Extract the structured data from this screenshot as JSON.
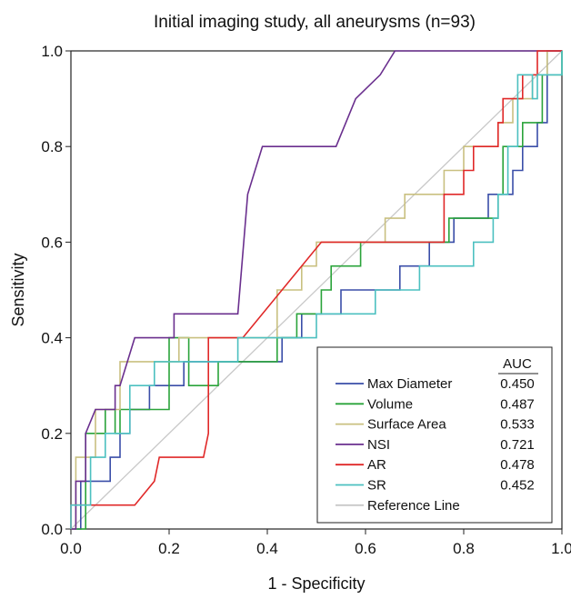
{
  "chart_data": {
    "type": "line",
    "title": "Initial imaging study, all aneurysms (n=93)",
    "xlabel": "1 - Specificity",
    "ylabel": "Sensitivity",
    "xlim": [
      0,
      1
    ],
    "ylim": [
      0,
      1
    ],
    "xticks": [
      "0.0",
      "0.2",
      "0.4",
      "0.6",
      "0.8",
      "1.0"
    ],
    "yticks": [
      "0.0",
      "0.2",
      "0.4",
      "0.6",
      "0.8",
      "1.0"
    ],
    "grid": false,
    "legend_placement": "bottom-right",
    "legend_header": "AUC",
    "series": [
      {
        "name": "Max Diameter",
        "auc": "0.450",
        "color": "#3a4ea8",
        "points": [
          [
            0,
            0
          ],
          [
            0.02,
            0
          ],
          [
            0.02,
            0.1
          ],
          [
            0.08,
            0.1
          ],
          [
            0.08,
            0.15
          ],
          [
            0.1,
            0.15
          ],
          [
            0.1,
            0.2
          ],
          [
            0.12,
            0.2
          ],
          [
            0.12,
            0.25
          ],
          [
            0.16,
            0.25
          ],
          [
            0.16,
            0.3
          ],
          [
            0.23,
            0.3
          ],
          [
            0.23,
            0.35
          ],
          [
            0.43,
            0.35
          ],
          [
            0.43,
            0.4
          ],
          [
            0.47,
            0.4
          ],
          [
            0.47,
            0.45
          ],
          [
            0.55,
            0.45
          ],
          [
            0.55,
            0.5
          ],
          [
            0.67,
            0.5
          ],
          [
            0.67,
            0.55
          ],
          [
            0.73,
            0.55
          ],
          [
            0.73,
            0.6
          ],
          [
            0.78,
            0.6
          ],
          [
            0.78,
            0.65
          ],
          [
            0.85,
            0.65
          ],
          [
            0.85,
            0.7
          ],
          [
            0.9,
            0.7
          ],
          [
            0.9,
            0.75
          ],
          [
            0.92,
            0.75
          ],
          [
            0.92,
            0.8
          ],
          [
            0.95,
            0.8
          ],
          [
            0.95,
            0.85
          ],
          [
            0.97,
            0.85
          ],
          [
            0.97,
            1.0
          ],
          [
            1,
            1
          ]
        ]
      },
      {
        "name": "Volume",
        "auc": "0.487",
        "color": "#2aa33a",
        "points": [
          [
            0,
            0
          ],
          [
            0.03,
            0
          ],
          [
            0.03,
            0.2
          ],
          [
            0.07,
            0.2
          ],
          [
            0.07,
            0.25
          ],
          [
            0.09,
            0.25
          ],
          [
            0.09,
            0.2
          ],
          [
            0.1,
            0.2
          ],
          [
            0.1,
            0.25
          ],
          [
            0.2,
            0.25
          ],
          [
            0.2,
            0.4
          ],
          [
            0.24,
            0.4
          ],
          [
            0.24,
            0.3
          ],
          [
            0.3,
            0.3
          ],
          [
            0.3,
            0.35
          ],
          [
            0.42,
            0.35
          ],
          [
            0.42,
            0.4
          ],
          [
            0.46,
            0.4
          ],
          [
            0.46,
            0.45
          ],
          [
            0.51,
            0.45
          ],
          [
            0.51,
            0.5
          ],
          [
            0.53,
            0.5
          ],
          [
            0.53,
            0.55
          ],
          [
            0.59,
            0.55
          ],
          [
            0.59,
            0.6
          ],
          [
            0.77,
            0.6
          ],
          [
            0.77,
            0.65
          ],
          [
            0.87,
            0.65
          ],
          [
            0.87,
            0.7
          ],
          [
            0.88,
            0.7
          ],
          [
            0.88,
            0.8
          ],
          [
            0.92,
            0.8
          ],
          [
            0.92,
            0.85
          ],
          [
            0.96,
            0.85
          ],
          [
            0.96,
            0.95
          ],
          [
            1,
            0.95
          ],
          [
            1,
            1
          ]
        ]
      },
      {
        "name": "Surface Area",
        "auc": "0.533",
        "color": "#c9c080",
        "points": [
          [
            0,
            0
          ],
          [
            0.01,
            0
          ],
          [
            0.01,
            0.15
          ],
          [
            0.05,
            0.15
          ],
          [
            0.05,
            0.25
          ],
          [
            0.1,
            0.25
          ],
          [
            0.1,
            0.35
          ],
          [
            0.22,
            0.35
          ],
          [
            0.22,
            0.4
          ],
          [
            0.42,
            0.4
          ],
          [
            0.42,
            0.5
          ],
          [
            0.47,
            0.5
          ],
          [
            0.47,
            0.55
          ],
          [
            0.5,
            0.55
          ],
          [
            0.5,
            0.6
          ],
          [
            0.64,
            0.6
          ],
          [
            0.64,
            0.65
          ],
          [
            0.68,
            0.65
          ],
          [
            0.68,
            0.7
          ],
          [
            0.76,
            0.7
          ],
          [
            0.76,
            0.75
          ],
          [
            0.8,
            0.75
          ],
          [
            0.8,
            0.8
          ],
          [
            0.87,
            0.8
          ],
          [
            0.87,
            0.85
          ],
          [
            0.9,
            0.85
          ],
          [
            0.9,
            0.9
          ],
          [
            0.94,
            0.9
          ],
          [
            0.94,
            0.95
          ],
          [
            0.97,
            0.95
          ],
          [
            0.97,
            1.0
          ],
          [
            1,
            1
          ]
        ]
      },
      {
        "name": "NSI",
        "auc": "0.721",
        "color": "#6a2f8e",
        "points": [
          [
            0,
            0
          ],
          [
            0.01,
            0
          ],
          [
            0.01,
            0.1
          ],
          [
            0.03,
            0.1
          ],
          [
            0.03,
            0.2
          ],
          [
            0.05,
            0.25
          ],
          [
            0.09,
            0.25
          ],
          [
            0.09,
            0.3
          ],
          [
            0.1,
            0.3
          ],
          [
            0.13,
            0.4
          ],
          [
            0.21,
            0.4
          ],
          [
            0.21,
            0.45
          ],
          [
            0.34,
            0.45
          ],
          [
            0.36,
            0.7
          ],
          [
            0.36,
            0.7
          ],
          [
            0.39,
            0.8
          ],
          [
            0.54,
            0.8
          ],
          [
            0.58,
            0.9
          ],
          [
            0.63,
            0.95
          ],
          [
            0.66,
            1.0
          ],
          [
            1,
            1
          ]
        ]
      },
      {
        "name": "AR",
        "auc": "0.478",
        "color": "#e02828",
        "points": [
          [
            0,
            0
          ],
          [
            0,
            0.05
          ],
          [
            0.13,
            0.05
          ],
          [
            0.17,
            0.1
          ],
          [
            0.18,
            0.15
          ],
          [
            0.27,
            0.15
          ],
          [
            0.28,
            0.2
          ],
          [
            0.28,
            0.4
          ],
          [
            0.35,
            0.4
          ],
          [
            0.51,
            0.6
          ],
          [
            0.76,
            0.6
          ],
          [
            0.76,
            0.7
          ],
          [
            0.8,
            0.7
          ],
          [
            0.8,
            0.75
          ],
          [
            0.82,
            0.75
          ],
          [
            0.82,
            0.8
          ],
          [
            0.87,
            0.8
          ],
          [
            0.87,
            0.85
          ],
          [
            0.88,
            0.85
          ],
          [
            0.88,
            0.9
          ],
          [
            0.92,
            0.9
          ],
          [
            0.92,
            0.95
          ],
          [
            0.95,
            0.95
          ],
          [
            0.95,
            1.0
          ],
          [
            1,
            1
          ]
        ]
      },
      {
        "name": "SR",
        "auc": "0.452",
        "color": "#4cc0c0",
        "points": [
          [
            0,
            0
          ],
          [
            0,
            0.05
          ],
          [
            0.04,
            0.05
          ],
          [
            0.04,
            0.15
          ],
          [
            0.07,
            0.15
          ],
          [
            0.07,
            0.2
          ],
          [
            0.12,
            0.2
          ],
          [
            0.12,
            0.3
          ],
          [
            0.17,
            0.3
          ],
          [
            0.17,
            0.35
          ],
          [
            0.34,
            0.35
          ],
          [
            0.34,
            0.4
          ],
          [
            0.5,
            0.4
          ],
          [
            0.5,
            0.45
          ],
          [
            0.62,
            0.45
          ],
          [
            0.62,
            0.5
          ],
          [
            0.71,
            0.5
          ],
          [
            0.71,
            0.55
          ],
          [
            0.82,
            0.55
          ],
          [
            0.82,
            0.6
          ],
          [
            0.86,
            0.6
          ],
          [
            0.86,
            0.65
          ],
          [
            0.87,
            0.65
          ],
          [
            0.87,
            0.7
          ],
          [
            0.89,
            0.7
          ],
          [
            0.89,
            0.8
          ],
          [
            0.91,
            0.8
          ],
          [
            0.91,
            0.95
          ],
          [
            0.94,
            0.95
          ],
          [
            0.94,
            0.9
          ],
          [
            0.95,
            0.9
          ],
          [
            0.95,
            0.95
          ],
          [
            1,
            0.95
          ],
          [
            1,
            1
          ]
        ]
      },
      {
        "name": "Reference Line",
        "auc": "",
        "color": "#c8c8c8",
        "points": [
          [
            0,
            0
          ],
          [
            1,
            1
          ]
        ]
      }
    ]
  }
}
